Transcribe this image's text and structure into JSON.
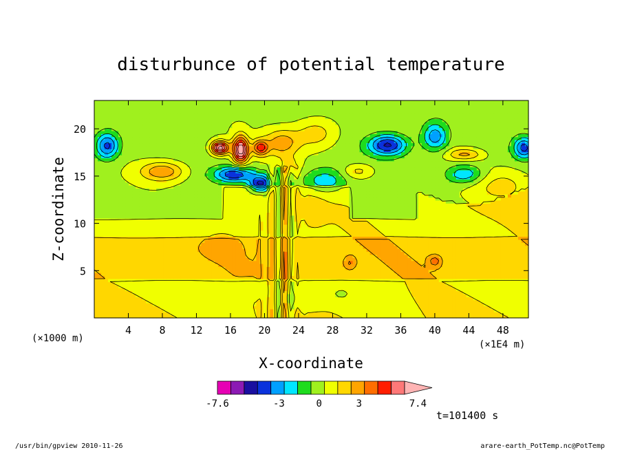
{
  "chart_data": {
    "type": "heatmap",
    "title": "disturbunce of potential temperature",
    "xlabel": "X-coordinate",
    "ylabel": "Z-coordinate",
    "x_unit_left": "(×1000 m)",
    "x_unit_right": "(×1E4 m)",
    "xlim": [
      0,
      51
    ],
    "ylim": [
      0,
      23
    ],
    "x_ticks": [
      4,
      8,
      12,
      16,
      20,
      24,
      28,
      32,
      36,
      40,
      44,
      48
    ],
    "y_ticks": [
      5,
      10,
      15,
      20
    ],
    "colorbar": {
      "levels": [
        -7.6,
        -6.6,
        -5.6,
        -4.6,
        -3.6,
        -2.6,
        -1.6,
        -0.6,
        0.4,
        1.4,
        2.4,
        3.4,
        4.4,
        5.4,
        6.4,
        7.4
      ],
      "colors": [
        "#e600b4",
        "#8c1ab4",
        "#1a0fa0",
        "#0a32dc",
        "#00a0ff",
        "#00e6ff",
        "#1edc1e",
        "#a0f01e",
        "#f0ff00",
        "#ffd700",
        "#ffa500",
        "#ff6e00",
        "#ff1e00",
        "#ff7878",
        "#ffb4b4"
      ],
      "labels": [
        {
          "value": -7.6,
          "text": "-7.6"
        },
        {
          "value": -3,
          "text": "-3"
        },
        {
          "value": 0,
          "text": "0"
        },
        {
          "value": 3,
          "text": "3"
        },
        {
          "value": 7.4,
          "text": "7.4"
        }
      ]
    },
    "time_label": "t=101400 s",
    "features": [
      {
        "x": 14.8,
        "z": 18.0,
        "sx": 1.0,
        "sz": 0.7,
        "amp": 7.0
      },
      {
        "x": 17.2,
        "z": 17.8,
        "sx": 0.9,
        "sz": 1.4,
        "amp": 7.2
      },
      {
        "x": 19.5,
        "z": 18.0,
        "sx": 0.9,
        "sz": 0.8,
        "amp": 4.5
      },
      {
        "x": 22.0,
        "z": 18.5,
        "sx": 2.0,
        "sz": 1.4,
        "amp": 2.8
      },
      {
        "x": 26.0,
        "z": 19.5,
        "sx": 2.5,
        "sz": 1.6,
        "amp": 2.0
      },
      {
        "x": 16.5,
        "z": 15.2,
        "sx": 2.3,
        "sz": 0.8,
        "amp": -4.6
      },
      {
        "x": 19.5,
        "z": 14.2,
        "sx": 1.2,
        "sz": 0.9,
        "amp": -5.0
      },
      {
        "x": 1.5,
        "z": 18.2,
        "sx": 1.4,
        "sz": 1.4,
        "amp": -4.2
      },
      {
        "x": 34.5,
        "z": 18.3,
        "sx": 2.2,
        "sz": 1.1,
        "amp": -5.0
      },
      {
        "x": 40.0,
        "z": 19.2,
        "sx": 1.5,
        "sz": 1.5,
        "amp": -3.5
      },
      {
        "x": 50.5,
        "z": 18.0,
        "sx": 1.2,
        "sz": 1.1,
        "amp": -4.0
      },
      {
        "x": 8.0,
        "z": 15.5,
        "sx": 2.5,
        "sz": 1.0,
        "amp": 3.2
      },
      {
        "x": 43.5,
        "z": 17.3,
        "sx": 2.0,
        "sz": 0.6,
        "amp": 2.5
      },
      {
        "x": 43.5,
        "z": 15.2,
        "sx": 2.2,
        "sz": 1.0,
        "amp": -2.8
      },
      {
        "x": 27.0,
        "z": 14.5,
        "sx": 2.5,
        "sz": 1.3,
        "amp": -2.5
      },
      {
        "x": 31.0,
        "z": 15.5,
        "sx": 1.8,
        "sz": 0.8,
        "amp": 1.8
      },
      {
        "x": 23.0,
        "z": 16.0,
        "sx": 1.2,
        "sz": 1.0,
        "amp": 1.6
      },
      {
        "x": 48.0,
        "z": 14.0,
        "sx": 3.5,
        "sz": 1.8,
        "amp": 1.6
      },
      {
        "x": 40.0,
        "z": 6.0,
        "sx": 0.6,
        "sz": 0.5,
        "amp": 2.2
      },
      {
        "x": 30.0,
        "z": 5.8,
        "sx": 0.6,
        "sz": 0.6,
        "amp": 1.5
      },
      {
        "x": 15.0,
        "z": 7.8,
        "sx": 1.8,
        "sz": 1.0,
        "amp": 0.8
      },
      {
        "x": 25.5,
        "z": 11.5,
        "sx": 1.5,
        "sz": 2.0,
        "amp": 0.6
      },
      {
        "x": 20.0,
        "z": 10.0,
        "sx": 1.2,
        "sz": 3.0,
        "amp": 0.5
      },
      {
        "x": 18.5,
        "z": 3.0,
        "sx": 1.5,
        "sz": 0.8,
        "amp": -0.9
      },
      {
        "x": 24.0,
        "z": 2.0,
        "sx": 2.5,
        "sz": 1.2,
        "amp": -1.0
      },
      {
        "x": 29.0,
        "z": 2.5,
        "sx": 1.5,
        "sz": 0.8,
        "amp": -0.8
      },
      {
        "x": 10.0,
        "z": 9.0,
        "sx": 6.0,
        "sz": 1.2,
        "amp": -0.4
      }
    ]
  },
  "footer": {
    "left": "/usr/bin/gpview  2010-11-26",
    "right": "arare-earth_PotTemp.nc@PotTemp"
  }
}
